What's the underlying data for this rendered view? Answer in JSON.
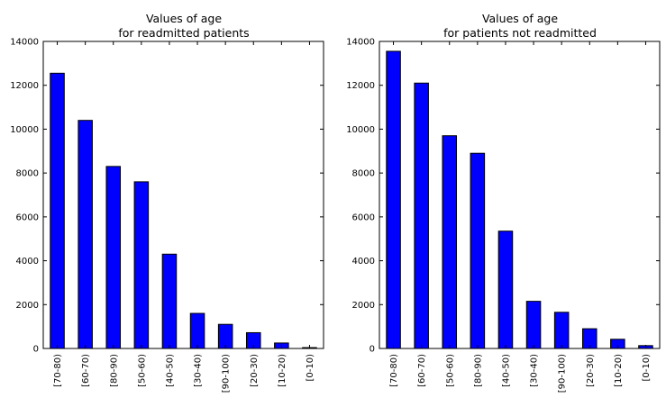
{
  "chart_data": [
    {
      "type": "bar",
      "title": "Values of age",
      "subtitle": "for readmitted patients",
      "xlabel": "",
      "ylabel": "",
      "ylim": [
        0,
        14000
      ],
      "yticks": [
        0,
        2000,
        4000,
        6000,
        8000,
        10000,
        12000,
        14000
      ],
      "grid": false,
      "bar_color": "#0000ff",
      "categories": [
        "[70-80)",
        "[60-70)",
        "[80-90)",
        "[50-60)",
        "[40-50)",
        "[30-40)",
        "[90-100)",
        "[20-30)",
        "[10-20)",
        "[0-10)"
      ],
      "values": [
        12550,
        10400,
        8300,
        7600,
        4300,
        1600,
        1100,
        720,
        250,
        40
      ]
    },
    {
      "type": "bar",
      "title": "Values of age",
      "subtitle": "for patients not readmitted",
      "xlabel": "",
      "ylabel": "",
      "ylim": [
        0,
        14000
      ],
      "yticks": [
        0,
        2000,
        4000,
        6000,
        8000,
        10000,
        12000,
        14000
      ],
      "grid": false,
      "bar_color": "#0000ff",
      "categories": [
        "[70-80)",
        "[60-70)",
        "[50-60)",
        "[80-90)",
        "[40-50)",
        "[30-40)",
        "[90-100)",
        "[20-30)",
        "[10-20)",
        "[0-10)"
      ],
      "values": [
        13550,
        12100,
        9700,
        8900,
        5350,
        2150,
        1650,
        900,
        420,
        130
      ]
    }
  ]
}
